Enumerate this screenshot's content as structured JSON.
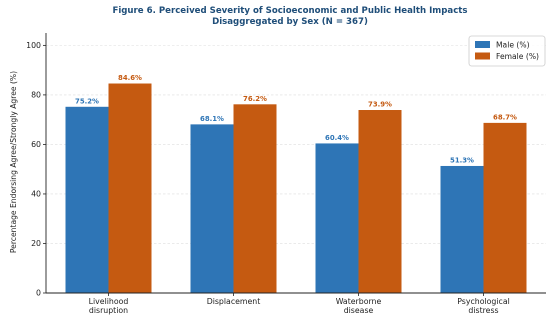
{
  "chart_data": {
    "type": "bar",
    "title_lines": [
      "Figure 6. Perceived Severity of Socioeconomic and Public Health Impacts",
      "Disaggregated by Sex (N = 367)"
    ],
    "xlabel": "",
    "ylabel": "Percentage Endorsing Agree/Strongly Agree (%)",
    "ylim": [
      0,
      105
    ],
    "yticks": [
      0,
      20,
      40,
      60,
      80,
      100
    ],
    "grid": "horizontal, dashed, light",
    "legend_position": "top-right",
    "categories": [
      [
        "Livelihood",
        "disruption"
      ],
      [
        "Displacement"
      ],
      [
        "Waterborne",
        "disease"
      ],
      [
        "Psychological",
        "distress"
      ]
    ],
    "series": [
      {
        "name": "Male (%)",
        "color": "#2E75B6",
        "values": [
          75.2,
          68.1,
          60.4,
          51.3
        ],
        "labels": [
          "75.2%",
          "68.1%",
          "60.4%",
          "51.3%"
        ]
      },
      {
        "name": "Female (%)",
        "color": "#C55A11",
        "values": [
          84.6,
          76.2,
          73.9,
          68.7
        ],
        "labels": [
          "84.6%",
          "76.2%",
          "73.9%",
          "68.7%"
        ]
      }
    ],
    "title_color": "#1F4E79"
  }
}
